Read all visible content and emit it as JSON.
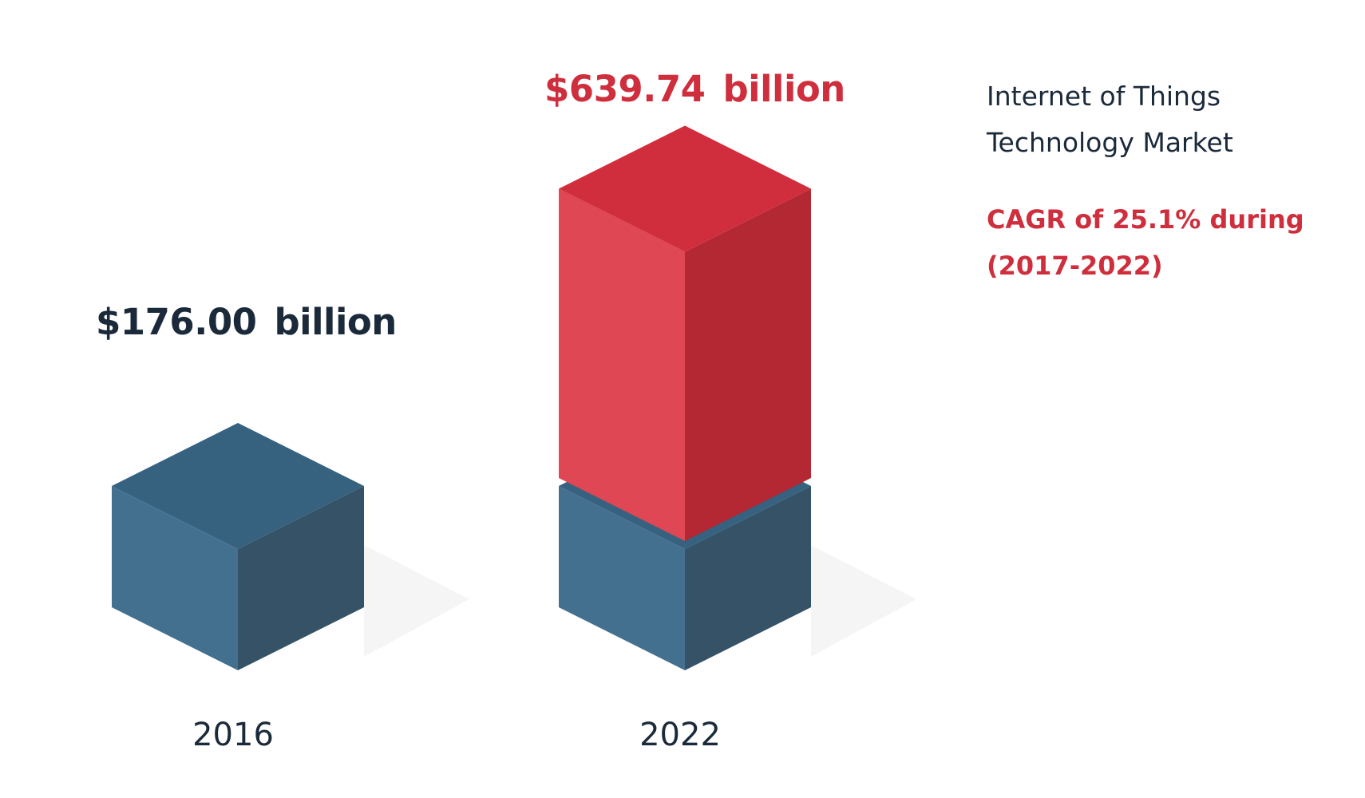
{
  "chart_data": {
    "type": "bar",
    "style": "isometric-cubes",
    "title_lines": [
      "Internet of Things",
      "Technology Market"
    ],
    "annotation_lines": [
      "CAGR of 25.1% during",
      "(2017-2022)"
    ],
    "categories": [
      "2016",
      "2022"
    ],
    "values": [
      176.0,
      639.74
    ],
    "value_labels": [
      {
        "amount": "$176.00",
        "unit": "billion"
      },
      {
        "amount": "$639.74",
        "unit": "billion"
      }
    ],
    "unit": "billion USD",
    "legend": "none",
    "grid": false
  },
  "colors": {
    "base_top": "#36617f",
    "base_left": "#44708f",
    "base_right": "#355266",
    "growth_top": "#d12e3d",
    "growth_left": "#de4753",
    "growth_right": "#b42833",
    "shadow": "#f5f5f5",
    "text_dark": "#1b2a3a",
    "text_red": "#cf2e3d"
  }
}
